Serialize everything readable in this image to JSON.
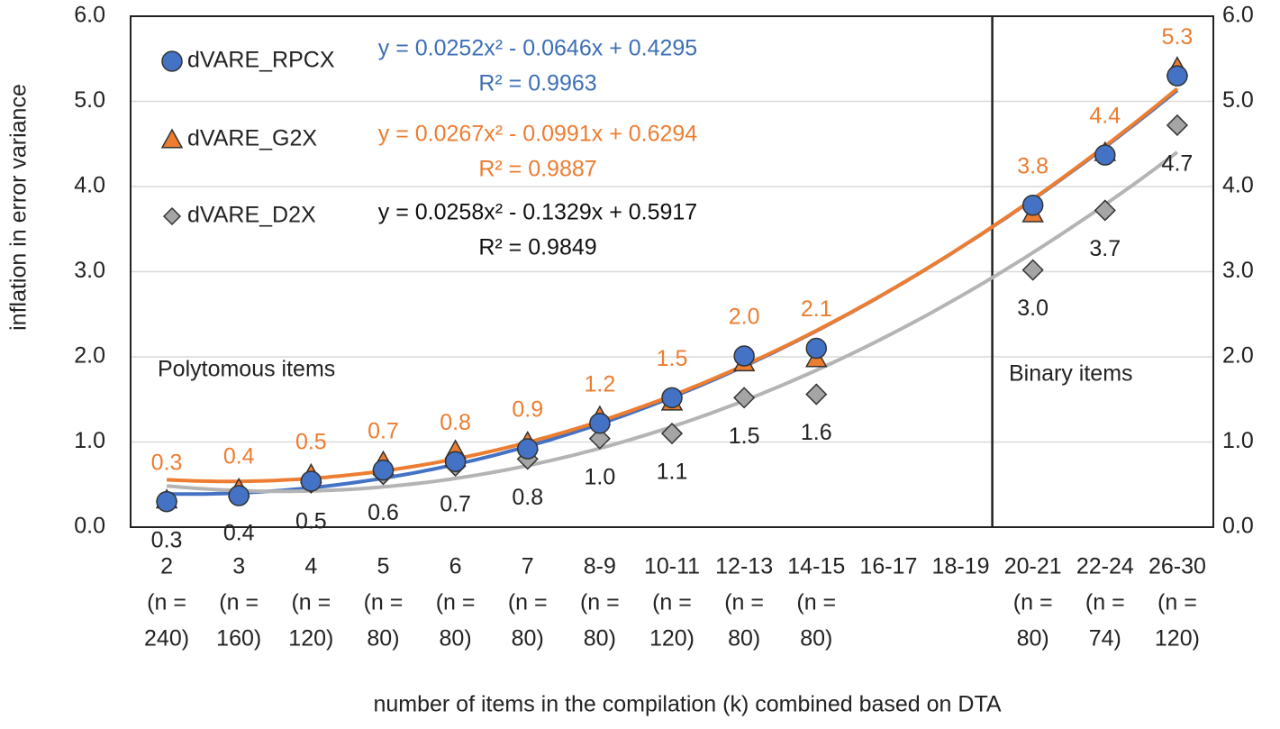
{
  "chart_data": {
    "type": "scatter",
    "y_axis_label": "inflation in error variance",
    "x_axis_label": "number of items in the compilation (k) combined based on DTA",
    "categories": [
      [
        "2",
        "(n =",
        "240)"
      ],
      [
        "3",
        "(n =",
        "160)"
      ],
      [
        "4",
        "(n =",
        "120)"
      ],
      [
        "5",
        "(n =",
        "80)"
      ],
      [
        "6",
        "(n =",
        "80)"
      ],
      [
        "7",
        "(n =",
        "80)"
      ],
      [
        "8-9",
        "(n =",
        "80)"
      ],
      [
        "10-11",
        "(n =",
        "120)"
      ],
      [
        "12-13",
        "(n =",
        "80)"
      ],
      [
        "14-15",
        "(n =",
        "80)"
      ],
      [
        "16-17"
      ],
      [
        "18-19"
      ],
      [
        "20-21",
        "(n =",
        "80)"
      ],
      [
        "22-24",
        "(n =",
        "74)"
      ],
      [
        "26-30",
        "(n =",
        "120)"
      ]
    ],
    "ylim": [
      0,
      6
    ],
    "yticks": [
      {
        "value": 0,
        "label": "0.0"
      },
      {
        "value": 1,
        "label": "1.0"
      },
      {
        "value": 2,
        "label": "2.0"
      },
      {
        "value": 3,
        "label": "3.0"
      },
      {
        "value": 4,
        "label": "4.0"
      },
      {
        "value": 5,
        "label": "5.0"
      },
      {
        "value": 6,
        "label": "6.0"
      }
    ],
    "y2lim": [
      0,
      6
    ],
    "y2ticks": [
      {
        "value": 0,
        "label": "0.0"
      },
      {
        "value": 1,
        "label": "1.0"
      },
      {
        "value": 2,
        "label": "2.0"
      },
      {
        "value": 3,
        "label": "3.0"
      },
      {
        "value": 4,
        "label": "4.0"
      },
      {
        "value": 5,
        "label": "5.0"
      },
      {
        "value": 6,
        "label": "6.0"
      }
    ],
    "grid": true,
    "annotations": [
      "Polytomous items",
      "Binary items"
    ],
    "series": [
      {
        "name": "dVARE_RPCX",
        "color": "#4472c4",
        "marker": "circle",
        "label_color": "#ed7d31",
        "label_position": "above",
        "values": [
          0.3,
          0.37,
          0.54,
          0.67,
          0.77,
          0.92,
          1.22,
          1.52,
          2.01,
          2.1,
          null,
          null,
          3.78,
          4.37,
          5.3
        ],
        "value_labels": [
          "0.3",
          "0.4",
          "0.5",
          "0.7",
          "0.8",
          "0.9",
          "1.2",
          "1.5",
          "2.0",
          "2.1",
          null,
          null,
          "3.8",
          "4.4",
          "5.3"
        ],
        "trendline": {
          "color": "#4472c4",
          "coefficients": [
            0.0252,
            -0.0646,
            0.4295
          ],
          "equation": "y = 0.0252x² - 0.0646x + 0.4295",
          "r_squared": "R² = 0.9963",
          "text_color": "#3d6fb6"
        }
      },
      {
        "name": "dVARE_G2X",
        "color": "#ed7d31",
        "marker": "triangle",
        "values": [
          0.32,
          0.45,
          0.62,
          0.77,
          0.9,
          1.0,
          1.3,
          1.47,
          1.93,
          1.98,
          null,
          null,
          3.68,
          4.4,
          5.4
        ],
        "trendline": {
          "color": "#ed7d31",
          "coefficients": [
            0.0267,
            -0.0991,
            0.6294
          ],
          "equation": "y = 0.0267x² - 0.0991x + 0.6294",
          "r_squared": "R² = 0.9887",
          "text_color": "#ed7d31"
        }
      },
      {
        "name": "dVARE_D2X",
        "color": "#a5a5a5",
        "marker": "diamond",
        "label_color": "#222222",
        "label_position": "below",
        "values": [
          0.3,
          0.38,
          0.52,
          0.62,
          0.72,
          0.8,
          1.04,
          1.1,
          1.52,
          1.56,
          null,
          null,
          3.02,
          3.72,
          4.72
        ],
        "value_labels": [
          "0.3",
          "0.4",
          "0.5",
          "0.6",
          "0.7",
          "0.8",
          "1.0",
          "1.1",
          "1.5",
          "1.6",
          null,
          null,
          "3.0",
          "3.7",
          "4.7"
        ],
        "trendline": {
          "color": "#b4b4b4",
          "coefficients": [
            0.0258,
            -0.1329,
            0.5917
          ],
          "equation": "y = 0.0258x² - 0.1329x + 0.5917",
          "r_squared": "R² = 0.9849",
          "text_color": "#111111"
        }
      }
    ]
  }
}
